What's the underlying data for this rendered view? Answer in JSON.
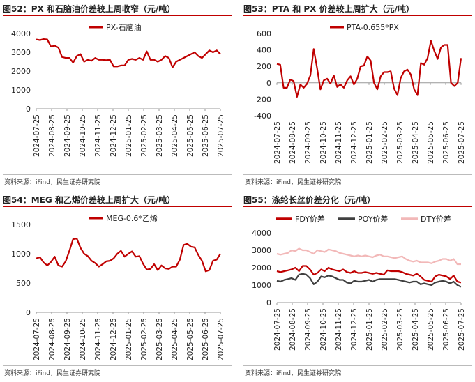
{
  "panels": [
    {
      "title": "图52：PX 和石脑油价差较上周收窄（元/吨）",
      "source": "资料来源：iFind，民生证券研究院",
      "chart_data": {
        "type": "line",
        "title": "图52：PX 和石脑油价差较上周收窄（元/吨）",
        "xlabel": "",
        "ylabel": "",
        "ylim": [
          0,
          4000
        ],
        "yticks": [
          0,
          1000,
          2000,
          3000,
          4000
        ],
        "xticks": [
          "2024-07-25",
          "2024-08-25",
          "2024-09-25",
          "2024-10-25",
          "2024-11-25",
          "2024-12-25",
          "2025-01-25",
          "2025-02-25",
          "2025-03-25",
          "2025-04-25",
          "2025-05-25",
          "2025-06-25",
          "2025-07-25"
        ],
        "legend_position": "top-center",
        "grid": false,
        "series": [
          {
            "name": "PX-石脑油",
            "color": "#c00000",
            "values": [
              3680,
              3650,
              3700,
              3680,
              3300,
              3350,
              3250,
              2750,
              2700,
              2700,
              2450,
              2800,
              2900,
              2500,
              2600,
              2550,
              2700,
              2600,
              2600,
              2580,
              2600,
              2250,
              2250,
              2300,
              2300,
              2600,
              2650,
              2600,
              2700,
              2600,
              3050,
              2600,
              2600,
              2500,
              2600,
              2800,
              2700,
              2200,
              2500,
              2600,
              2700,
              2800,
              2900,
              3000,
              2800,
              2700,
              2900,
              3100,
              3000,
              3100,
              2900
            ]
          }
        ]
      }
    },
    {
      "title": "图53：PTA 和 PX 价差较上周扩大（元/吨）",
      "source": "资料来源：iFind，民生证券研究院",
      "chart_data": {
        "type": "line",
        "title": "图53：PTA 和 PX 价差较上周扩大（元/吨）",
        "xlabel": "",
        "ylabel": "",
        "ylim": [
          -400,
          600
        ],
        "yticks": [
          -400,
          -200,
          0,
          200,
          400,
          600
        ],
        "xticks": [
          "2024-07-25",
          "2024-08-25",
          "2024-09-25",
          "2024-10-25",
          "2024-11-25",
          "2024-12-25",
          "2025-01-25",
          "2025-02-25",
          "2025-03-25",
          "2025-04-25",
          "2025-05-25",
          "2025-06-25",
          "2025-07-25"
        ],
        "legend_position": "top-center",
        "grid": false,
        "series": [
          {
            "name": "PTA-0.655*PX",
            "color": "#c00000",
            "values": [
              230,
              220,
              -60,
              -60,
              40,
              20,
              -170,
              -20,
              -60,
              -10,
              90,
              410,
              180,
              -80,
              30,
              50,
              -10,
              90,
              -50,
              -20,
              -60,
              30,
              80,
              -20,
              50,
              200,
              210,
              320,
              270,
              0,
              -80,
              80,
              130,
              130,
              140,
              -70,
              -150,
              60,
              140,
              160,
              100,
              -80,
              -150,
              240,
              220,
              300,
              510,
              390,
              290,
              430,
              460,
              460,
              0,
              -40,
              0,
              300
            ]
          }
        ]
      }
    },
    {
      "title": "图54：MEG 和乙烯价差较上周扩大（元/吨）",
      "source": "资料来源：iFind，民生证券研究院",
      "chart_data": {
        "type": "line",
        "title": "图54：MEG 和乙烯价差较上周扩大（元/吨）",
        "xlabel": "",
        "ylabel": "",
        "ylim": [
          0,
          1500
        ],
        "yticks": [
          0,
          500,
          1000,
          1500
        ],
        "xticks": [
          "2024-07-25",
          "2024-08-25",
          "2024-09-25",
          "2024-10-25",
          "2024-11-25",
          "2024-12-25",
          "2025-01-25",
          "2025-02-25",
          "2025-03-25",
          "2025-04-25",
          "2025-05-25",
          "2025-06-25",
          "2025-07-25"
        ],
        "legend_position": "top-center",
        "grid": false,
        "series": [
          {
            "name": "MEG-0.6*乙烯",
            "color": "#c00000",
            "values": [
              920,
              940,
              850,
              800,
              860,
              950,
              800,
              780,
              870,
              1050,
              1250,
              1260,
              1100,
              1000,
              960,
              880,
              840,
              780,
              820,
              870,
              880,
              920,
              1000,
              1050,
              950,
              1000,
              1040,
              950,
              960,
              830,
              730,
              740,
              820,
              720,
              800,
              750,
              740,
              780,
              780,
              900,
              1150,
              1170,
              1120,
              1110,
              980,
              880,
              700,
              720,
              880,
              900,
              1000
            ]
          }
        ]
      }
    },
    {
      "title": "图55：涤纶长丝价差分化（元/吨）",
      "source": "资料来源：iFind，民生证券研究院",
      "chart_data": {
        "type": "line",
        "title": "图55：涤纶长丝价差分化（元/吨）",
        "xlabel": "",
        "ylabel": "",
        "ylim": [
          0,
          4000
        ],
        "yticks": [
          0,
          1000,
          2000,
          3000,
          4000
        ],
        "xticks": [
          "2024-07-25",
          "2024-08-25",
          "2024-09-25",
          "2024-10-25",
          "2024-11-25",
          "2024-12-25",
          "2025-01-25",
          "2025-02-25",
          "2025-03-25",
          "2025-04-25",
          "2025-05-25",
          "2025-06-25",
          "2025-07-25"
        ],
        "legend_position": "top-center",
        "grid": false,
        "series": [
          {
            "name": "FDY价差",
            "color": "#c00000",
            "values": [
              1800,
              1750,
              1800,
              1850,
              1900,
              2000,
              1800,
              2100,
              2100,
              1900,
              1600,
              1700,
              1900,
              1800,
              2000,
              1900,
              1850,
              1800,
              1900,
              1750,
              1700,
              1800,
              1700,
              1700,
              1750,
              1700,
              1650,
              1700,
              1650,
              1600,
              1850,
              1800,
              1800,
              1800,
              1750,
              1650,
              1600,
              1550,
              1650,
              1500,
              1300,
              1250,
              1200,
              1500,
              1600,
              1550,
              1500,
              1350,
              1550,
              1200,
              1150
            ]
          },
          {
            "name": "POY价差",
            "color": "#404040",
            "values": [
              1250,
              1200,
              1300,
              1350,
              1400,
              1300,
              1600,
              1650,
              1600,
              1400,
              1050,
              1200,
              1500,
              1450,
              1550,
              1500,
              1400,
              1300,
              1300,
              1150,
              1100,
              1250,
              1200,
              1200,
              1250,
              1300,
              1200,
              1300,
              1350,
              1350,
              1350,
              1350,
              1350,
              1300,
              1250,
              1200,
              1150,
              1200,
              1200,
              1050,
              1100,
              1050,
              1000,
              1150,
              1200,
              1250,
              1200,
              1100,
              1200,
              1000,
              900
            ]
          },
          {
            "name": "DTY价差",
            "color": "#f2b8b8",
            "values": [
              2800,
              2750,
              2800,
              2850,
              3000,
              2950,
              3100,
              3000,
              3000,
              2900,
              2800,
              3000,
              2950,
              2900,
              3050,
              3000,
              2950,
              2850,
              2800,
              2750,
              2700,
              2650,
              2700,
              2650,
              2700,
              2650,
              2600,
              2700,
              2750,
              2650,
              2650,
              2600,
              2550,
              2600,
              2650,
              2500,
              2400,
              2350,
              2400,
              2300,
              2300,
              2300,
              2250,
              2350,
              2400,
              2500,
              2500,
              2400,
              2500,
              2200,
              2200
            ]
          }
        ]
      }
    }
  ]
}
